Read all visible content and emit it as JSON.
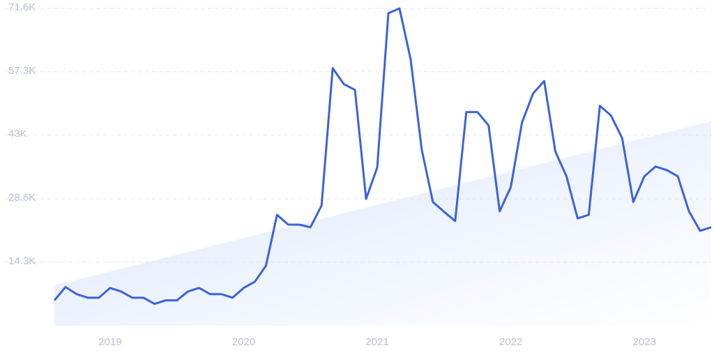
{
  "chart_data": {
    "type": "line",
    "categories": [
      null,
      null,
      null,
      null,
      null,
      "2019",
      null,
      null,
      null,
      null,
      null,
      null,
      null,
      null,
      null,
      null,
      null,
      "2020",
      null,
      null,
      null,
      null,
      null,
      null,
      null,
      null,
      null,
      null,
      null,
      "2021",
      null,
      null,
      null,
      null,
      null,
      null,
      null,
      null,
      null,
      null,
      null,
      "2022",
      null,
      null,
      null,
      null,
      null,
      null,
      null,
      null,
      null,
      null,
      null,
      "2023",
      null,
      null,
      null,
      null,
      null,
      null
    ],
    "values": [
      5700,
      8700,
      7100,
      6300,
      6300,
      8500,
      7700,
      6300,
      6300,
      4900,
      5700,
      5700,
      7700,
      8500,
      7100,
      7100,
      6300,
      8500,
      9900,
      13500,
      25000,
      22800,
      22800,
      22200,
      27100,
      58100,
      54500,
      53200,
      28600,
      35700,
      70500,
      71600,
      60100,
      39700,
      27900,
      25700,
      23600,
      48200,
      48200,
      45200,
      25800,
      31300,
      45800,
      52400,
      55200,
      39300,
      33700,
      24200,
      25000,
      49600,
      47400,
      42300,
      27900,
      33700,
      35900,
      35100,
      33700,
      25800,
      21400,
      22200
    ],
    "color": "#3b61dc",
    "trend": [
      9100,
      46100
    ],
    "trend_color": "#dbe7fb",
    "ylim": [
      0,
      71600
    ],
    "yticks": [
      {
        "value": 14300,
        "label": "14.3K"
      },
      {
        "value": 28600,
        "label": "28.6K"
      },
      {
        "value": 43000,
        "label": "43K"
      },
      {
        "value": 57300,
        "label": "57.3K"
      },
      {
        "value": 71600,
        "label": "71.6K"
      }
    ],
    "grid": true
  }
}
